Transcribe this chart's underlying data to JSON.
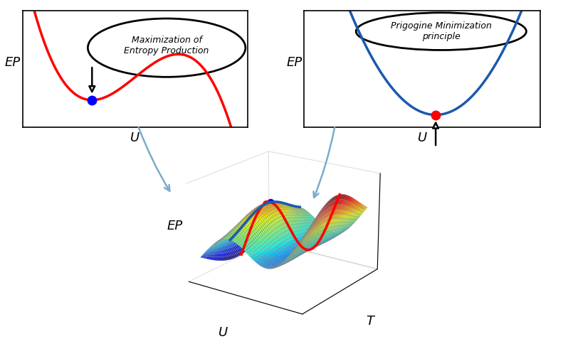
{
  "bg_color": "#ffffff",
  "surface_cmap": "jet",
  "red_line_color": "#ff0000",
  "blue_line_color": "#1a5aad",
  "arrow_color": "#7aaccc",
  "inset1_title_line1": "Maximization of",
  "inset1_title_line2": "Entropy Production",
  "inset2_title_line1": "Prigogine Minimization",
  "inset2_title_line2": "principle",
  "ep_label": "EP",
  "u_label": "U",
  "t_label": "T"
}
